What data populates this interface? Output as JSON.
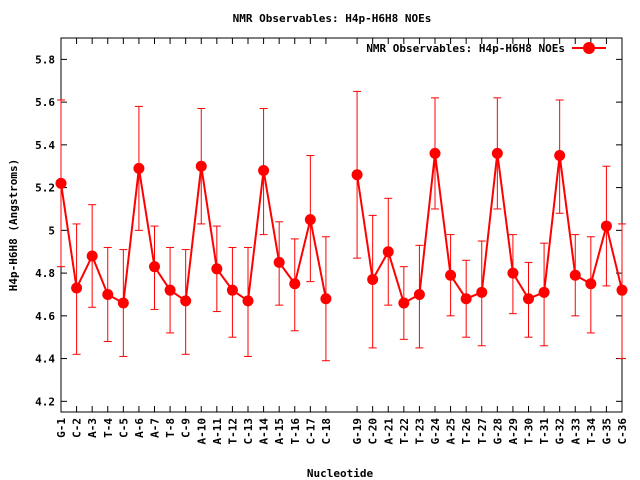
{
  "chart_data": {
    "type": "line",
    "title": "NMR Observables: H4p-H6H8 NOEs",
    "xlabel": "Nucleotide",
    "ylabel": "H4p-H6H8 (Angstroms)",
    "ylim": [
      4.15,
      5.9
    ],
    "yticks": [
      "4.2",
      "4.4",
      "4.6",
      "4.8",
      "5",
      "5.2",
      "5.4",
      "5.6",
      "5.8"
    ],
    "legend_position": "top-right",
    "series_color": "#ff0000",
    "categories": [
      "G-1",
      "C-2",
      "A-3",
      "T-4",
      "C-5",
      "A-6",
      "A-7",
      "T-8",
      "C-9",
      "A-10",
      "A-11",
      "T-12",
      "C-13",
      "A-14",
      "A-15",
      "T-16",
      "C-17",
      "C-18",
      "G-19",
      "C-20",
      "A-21",
      "T-22",
      "T-23",
      "G-24",
      "A-25",
      "T-26",
      "T-27",
      "G-28",
      "A-29",
      "T-30",
      "T-31",
      "G-32",
      "A-33",
      "T-34",
      "G-35",
      "C-36"
    ],
    "x_positions": [
      1,
      2,
      3,
      4,
      5,
      6,
      7,
      8,
      9,
      10,
      11,
      12,
      13,
      14,
      15,
      16,
      17,
      18,
      20,
      21,
      22,
      23,
      24,
      25,
      26,
      27,
      28,
      29,
      30,
      31,
      32,
      33,
      34,
      35,
      36,
      37
    ],
    "series": [
      {
        "name": "NMR Observables: H4p-H6H8 NOEs",
        "segments": [
          [
            0,
            17
          ],
          [
            18,
            35
          ]
        ],
        "values": [
          5.22,
          4.73,
          4.88,
          4.7,
          4.66,
          5.29,
          4.83,
          4.72,
          4.67,
          5.3,
          4.82,
          4.72,
          4.67,
          5.28,
          4.85,
          4.75,
          5.05,
          4.68,
          5.26,
          4.77,
          4.9,
          4.66,
          4.7,
          5.36,
          4.79,
          4.68,
          4.71,
          5.36,
          4.8,
          4.68,
          4.71,
          5.35,
          4.79,
          4.75,
          5.02,
          4.72
        ],
        "err_low": [
          4.83,
          4.42,
          4.64,
          4.48,
          4.41,
          5.0,
          4.63,
          4.52,
          4.42,
          5.03,
          4.62,
          4.5,
          4.41,
          4.98,
          4.65,
          4.53,
          4.76,
          4.39,
          4.87,
          4.45,
          4.65,
          4.49,
          4.45,
          5.1,
          4.6,
          4.5,
          4.46,
          5.1,
          4.61,
          4.5,
          4.46,
          5.08,
          4.6,
          4.52,
          4.74,
          4.4
        ],
        "err_high": [
          5.61,
          5.03,
          5.12,
          4.92,
          4.91,
          5.58,
          5.02,
          4.92,
          4.91,
          5.57,
          5.02,
          4.92,
          4.92,
          5.57,
          5.04,
          4.96,
          5.35,
          4.97,
          5.65,
          5.07,
          5.15,
          4.83,
          4.93,
          5.62,
          4.98,
          4.86,
          4.95,
          5.62,
          4.98,
          4.85,
          4.94,
          5.61,
          4.98,
          4.97,
          5.3,
          5.03
        ]
      }
    ]
  }
}
